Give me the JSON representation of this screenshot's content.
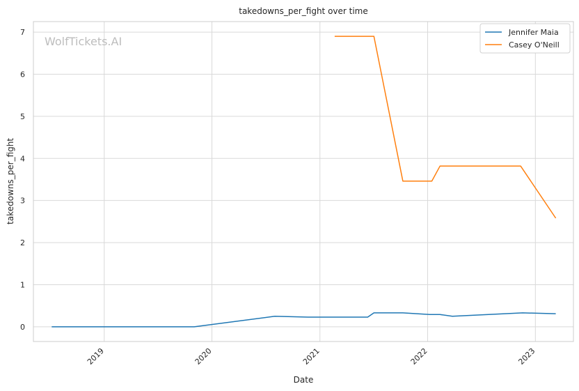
{
  "chart_data": {
    "type": "line",
    "title": "takedowns_per_fight over time",
    "xlabel": "Date",
    "ylabel": "takedowns_per_fight",
    "watermark": "WolfTickets.AI",
    "x_ticks": [
      "2019",
      "2020",
      "2021",
      "2022",
      "2023"
    ],
    "y_ticks": [
      "0",
      "1",
      "2",
      "3",
      "4",
      "5",
      "6",
      "7"
    ],
    "xlim": [
      "2018-05-06",
      "2023-05-10"
    ],
    "ylim": [
      -0.35,
      7.25
    ],
    "grid": true,
    "legend_position": "top-right",
    "series": [
      {
        "name": "Jennifer Maia",
        "color": "#1f77b4",
        "points": [
          {
            "x": "2018-07-07",
            "y": 0.0
          },
          {
            "x": "2019-11-02",
            "y": 0.0
          },
          {
            "x": "2020-08-01",
            "y": 0.25
          },
          {
            "x": "2020-11-21",
            "y": 0.23
          },
          {
            "x": "2021-06-12",
            "y": 0.23
          },
          {
            "x": "2021-07-03",
            "y": 0.33
          },
          {
            "x": "2021-10-09",
            "y": 0.33
          },
          {
            "x": "2022-01-08",
            "y": 0.29
          },
          {
            "x": "2022-02-12",
            "y": 0.29
          },
          {
            "x": "2022-03-26",
            "y": 0.25
          },
          {
            "x": "2022-11-19",
            "y": 0.33
          },
          {
            "x": "2023-03-11",
            "y": 0.31
          }
        ]
      },
      {
        "name": "Casey O'Neill",
        "color": "#ff7f0e",
        "points": [
          {
            "x": "2021-02-20",
            "y": 6.9
          },
          {
            "x": "2021-07-03",
            "y": 6.9
          },
          {
            "x": "2021-10-09",
            "y": 3.46
          },
          {
            "x": "2022-01-15",
            "y": 3.46
          },
          {
            "x": "2022-02-12",
            "y": 3.82
          },
          {
            "x": "2022-11-12",
            "y": 3.82
          },
          {
            "x": "2023-03-11",
            "y": 2.58
          }
        ]
      }
    ]
  }
}
